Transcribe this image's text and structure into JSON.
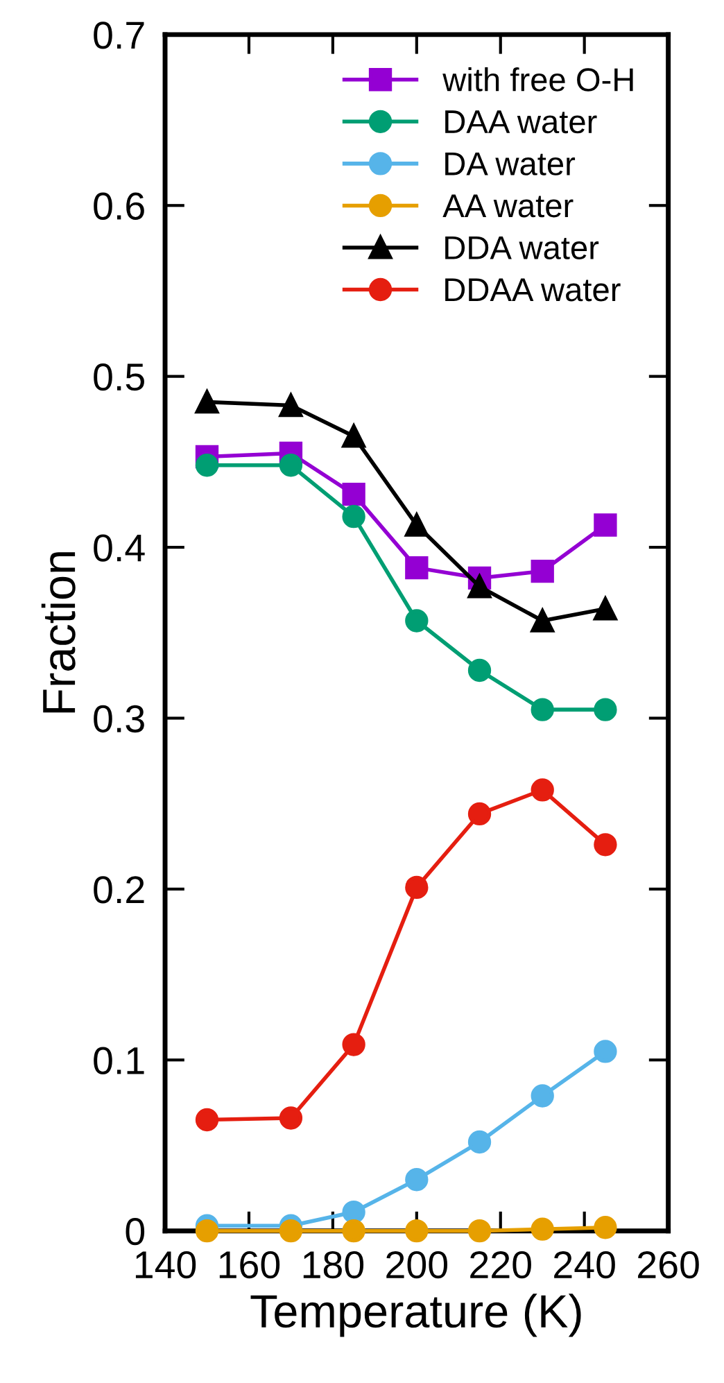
{
  "chart_data": {
    "type": "line",
    "xlabel": "Temperature (K)",
    "ylabel": "Fraction",
    "xlim": [
      140,
      260
    ],
    "xticks": [
      140,
      160,
      180,
      200,
      220,
      240,
      260
    ],
    "ylim": [
      0,
      0.7
    ],
    "yticks": [
      0,
      {
        "value": 0.1,
        "label": "0.1"
      },
      {
        "value": 0.2,
        "label": "0.2"
      },
      {
        "value": 0.3,
        "label": "0.3"
      },
      {
        "value": 0.4,
        "label": "0.4"
      },
      {
        "value": 0.5,
        "label": "0.5"
      },
      {
        "value": 0.6,
        "label": "0.6"
      },
      {
        "value": 0.7,
        "label": "0.7"
      }
    ],
    "x": [
      150,
      170,
      185,
      200,
      215,
      230,
      245
    ],
    "grid": false,
    "legend": "top right",
    "line_style": "solid",
    "series": [
      {
        "name": "with free O-H",
        "color": "#9400d3",
        "marker": "square",
        "values": [
          0.453,
          0.455,
          0.431,
          0.388,
          0.382,
          0.386,
          0.413
        ]
      },
      {
        "name": "DAA water",
        "color": "#009e73",
        "marker": "circle",
        "values": [
          0.448,
          0.448,
          0.418,
          0.357,
          0.328,
          0.305,
          0.305
        ]
      },
      {
        "name": "DA water",
        "color": "#56b4e9",
        "marker": "circle",
        "values": [
          0.003,
          0.003,
          0.011,
          0.03,
          0.052,
          0.079,
          0.105
        ]
      },
      {
        "name": "AA water",
        "color": "#e69f00",
        "marker": "circle",
        "values": [
          0,
          0,
          0,
          0,
          0,
          0.001,
          0.002
        ]
      },
      {
        "name": "DDA water",
        "color": "#000000",
        "marker": "triangle",
        "values": [
          0.485,
          0.483,
          0.465,
          0.413,
          0.377,
          0.357,
          0.364
        ]
      },
      {
        "name": "DDAA water",
        "color": "#e51e10",
        "marker": "circle",
        "values": [
          0.065,
          0.066,
          0.109,
          0.201,
          0.244,
          0.258,
          0.226
        ]
      }
    ]
  }
}
